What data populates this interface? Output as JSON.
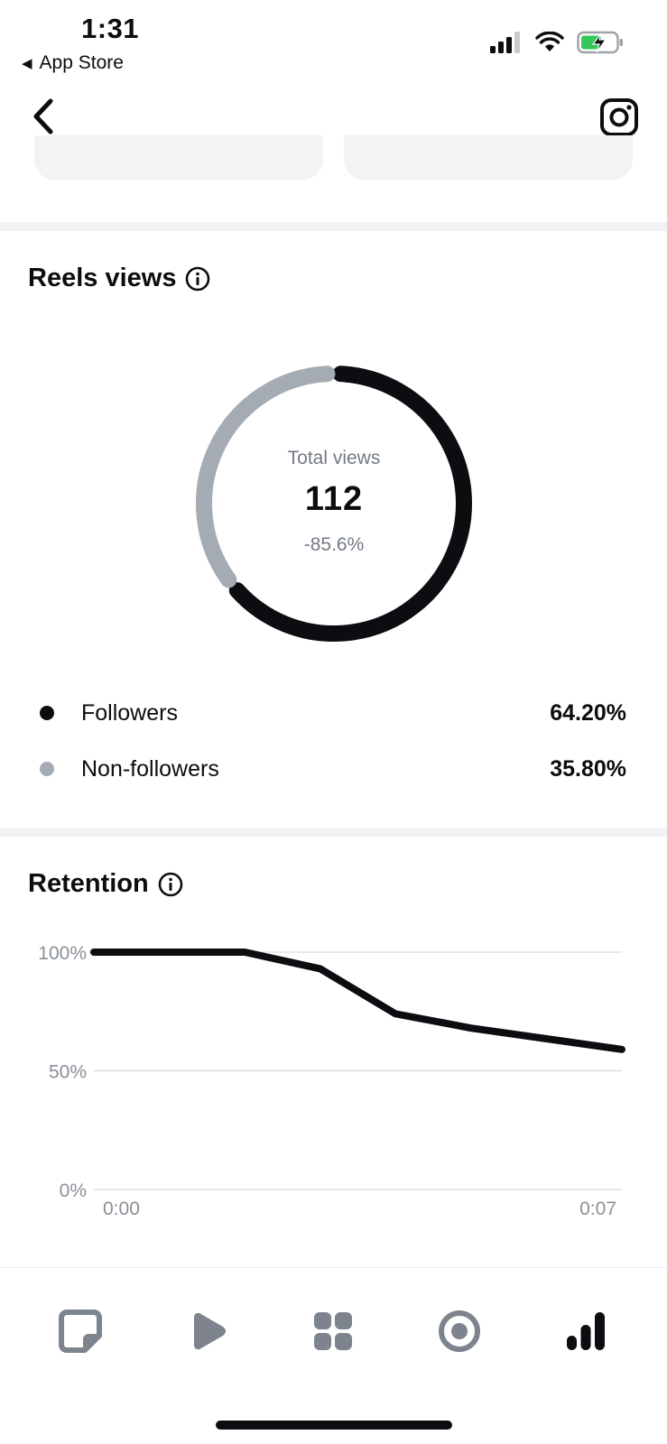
{
  "status_bar": {
    "time": "1:31",
    "back_app_label": "App Store",
    "icons": [
      "signal-icon",
      "wifi-icon",
      "battery-charging-icon"
    ]
  },
  "nav": {
    "back_icon": "chevron-left-icon",
    "right_icon": "instagram-icon"
  },
  "reels_views": {
    "title": "Reels views",
    "total_label": "Total views",
    "total_value": "112",
    "change": "-85.6%",
    "legend": [
      {
        "label": "Followers",
        "value": "64.20%",
        "share": 0.642,
        "color": "#0b0d10"
      },
      {
        "label": "Non-followers",
        "value": "35.80%",
        "share": 0.358,
        "color": "#a5abb3"
      }
    ]
  },
  "retention": {
    "title": "Retention"
  },
  "chart_data": {
    "type": "line",
    "title": "Retention",
    "x": [
      0,
      2,
      3,
      4,
      5,
      7
    ],
    "x_tick_labels": [
      "0:00",
      "0:07"
    ],
    "y_tick_labels": [
      "100%",
      "50%",
      "0%"
    ],
    "ylim": [
      0,
      100
    ],
    "xlim": [
      0,
      7
    ],
    "series": [
      {
        "values": [
          100,
          100,
          93,
          74,
          68,
          59
        ],
        "color": "#0b0d10"
      }
    ],
    "grid": true
  },
  "tabbar": {
    "tabs": [
      {
        "icon": "posts-icon",
        "active": false
      },
      {
        "icon": "reels-play-icon",
        "active": false
      },
      {
        "icon": "grid-icon",
        "active": false
      },
      {
        "icon": "live-icon",
        "active": false
      },
      {
        "icon": "insights-icon",
        "active": true
      }
    ]
  },
  "colors": {
    "dark": "#0b0d10",
    "muted": "#a5abb3",
    "grid": "#d9dcdf",
    "tick": "#8a9098"
  }
}
